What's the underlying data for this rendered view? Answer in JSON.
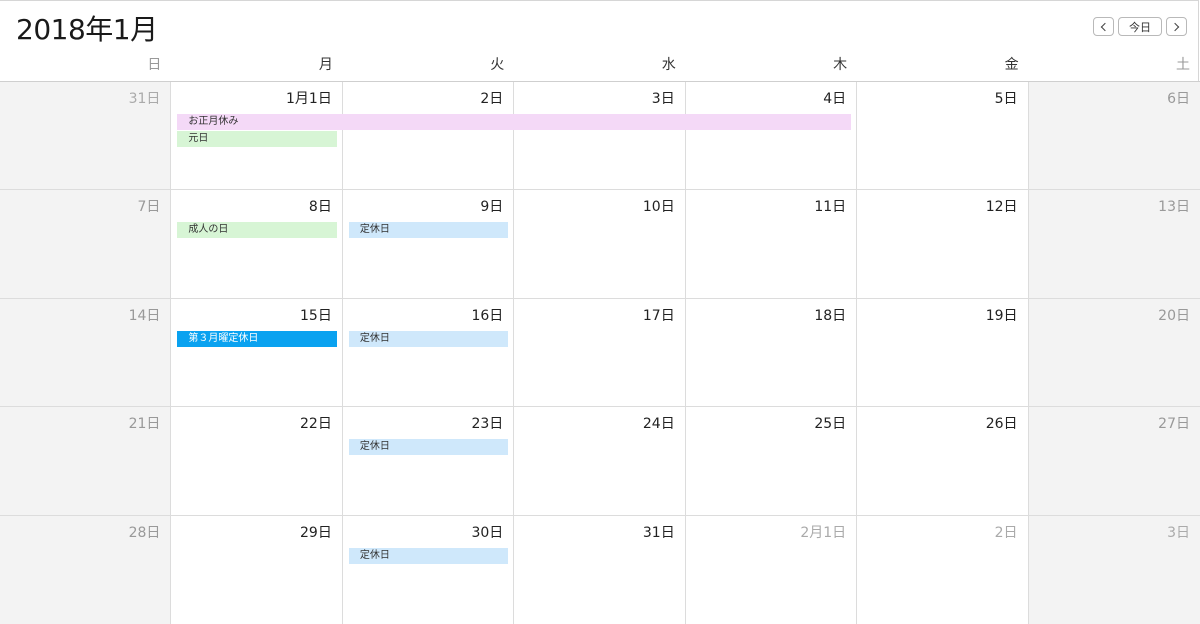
{
  "header": {
    "title": "2018年1月"
  },
  "nav": {
    "prev_icon": "chevron-left-icon",
    "today_label": "今日",
    "next_icon": "chevron-right-icon"
  },
  "weekdays": [
    "日",
    "月",
    "火",
    "水",
    "木",
    "金",
    "土"
  ],
  "weeks": [
    [
      {
        "label": "31日",
        "other": true
      },
      {
        "label": "1月1日"
      },
      {
        "label": "2日"
      },
      {
        "label": "3日"
      },
      {
        "label": "4日"
      },
      {
        "label": "5日"
      },
      {
        "label": "6日"
      }
    ],
    [
      {
        "label": "7日"
      },
      {
        "label": "8日"
      },
      {
        "label": "9日"
      },
      {
        "label": "10日"
      },
      {
        "label": "11日"
      },
      {
        "label": "12日"
      },
      {
        "label": "13日"
      }
    ],
    [
      {
        "label": "14日"
      },
      {
        "label": "15日"
      },
      {
        "label": "16日"
      },
      {
        "label": "17日"
      },
      {
        "label": "18日"
      },
      {
        "label": "19日"
      },
      {
        "label": "20日"
      }
    ],
    [
      {
        "label": "21日"
      },
      {
        "label": "22日"
      },
      {
        "label": "23日"
      },
      {
        "label": "24日"
      },
      {
        "label": "25日"
      },
      {
        "label": "26日"
      },
      {
        "label": "27日"
      }
    ],
    [
      {
        "label": "28日"
      },
      {
        "label": "29日"
      },
      {
        "label": "30日"
      },
      {
        "label": "31日"
      },
      {
        "label": "2月1日",
        "other": true
      },
      {
        "label": "2日",
        "other": true
      },
      {
        "label": "3日",
        "other": true
      }
    ]
  ],
  "events": [
    {
      "title": "お正月休み",
      "week": 0,
      "start_col": 1,
      "span": 4,
      "slot": 0,
      "color": "#f4d9f7",
      "style": "pink"
    },
    {
      "title": "元日",
      "week": 0,
      "start_col": 1,
      "span": 1,
      "slot": 1,
      "color": "#d7f5d5",
      "style": "green"
    },
    {
      "title": "成人の日",
      "week": 1,
      "start_col": 1,
      "span": 1,
      "slot": 0,
      "color": "#d7f5d5",
      "style": "green"
    },
    {
      "title": "定休日",
      "week": 1,
      "start_col": 2,
      "span": 1,
      "slot": 0,
      "color": "#cfe8fb",
      "style": "lblue"
    },
    {
      "title": "第３月曜定休日",
      "week": 2,
      "start_col": 1,
      "span": 1,
      "slot": 0,
      "color": "#0aa2f0",
      "style": "blue"
    },
    {
      "title": "定休日",
      "week": 2,
      "start_col": 2,
      "span": 1,
      "slot": 0,
      "color": "#cfe8fb",
      "style": "lblue"
    },
    {
      "title": "定休日",
      "week": 3,
      "start_col": 2,
      "span": 1,
      "slot": 0,
      "color": "#cfe8fb",
      "style": "lblue"
    },
    {
      "title": "定休日",
      "week": 4,
      "start_col": 2,
      "span": 1,
      "slot": 0,
      "color": "#cfe8fb",
      "style": "lblue"
    }
  ]
}
